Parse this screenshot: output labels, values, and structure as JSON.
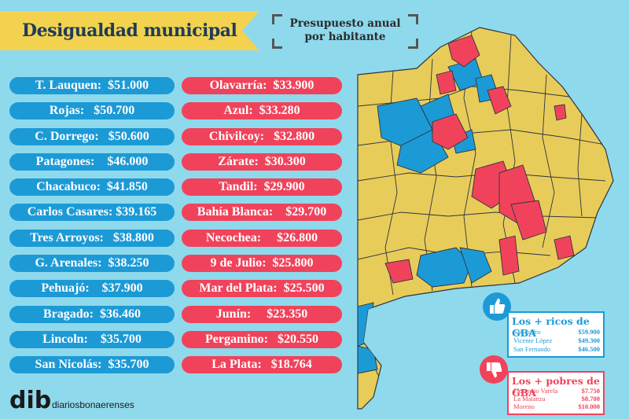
{
  "title": "Desigualdad municipal",
  "subtitle_line1": "Presupuesto anual",
  "subtitle_line2": "por habitante",
  "left_column": [
    "T. Lauquen:  $51.000",
    "Rojas:   $50.700",
    "C. Dorrego:   $50.600",
    "Patagones:    $46.000",
    "Chacabuco:  $41.850",
    "Carlos Casares: $39.165",
    "Tres Arroyos:   $38.800",
    "G. Arenales:  $38.250",
    "Pehuajó:    $37.900",
    "Bragado:  $36.460",
    "Lincoln:    $35.700",
    "San Nicolás:  $35.700"
  ],
  "right_column": [
    "Olavarría:  $33.900",
    "Azul:  $33.280",
    "Chivilcoy:   $32.800",
    "Zárate:  $30.300",
    "Tandil:  $29.900",
    "Bahía Blanca:    $29.700",
    "Necochea:     $26.800",
    "9 de Julio:  $25.800",
    "Mar del Plata:  $25.500",
    "Junín:     $23.350",
    "Pergamino:   $20.550",
    "La Plata:   $18.764"
  ],
  "rich_box": {
    "title": "Los + ricos de GBA",
    "rows": [
      {
        "name": "San Isidro",
        "value": "$59.900"
      },
      {
        "name": "Vicente López",
        "value": "$49.300"
      },
      {
        "name": "San Fernando",
        "value": "$46.500"
      }
    ]
  },
  "poor_box": {
    "title": "Los + pobres de GBA",
    "rows": [
      {
        "name": "Florencio Varela",
        "value": "$7.750"
      },
      {
        "name": "La Matanza",
        "value": "$8.700"
      },
      {
        "name": "Moreno",
        "value": "$10.000"
      }
    ]
  },
  "logo_mark": "dib",
  "logo_text": "diariosbonaerenses",
  "colors": {
    "background": "#8fd9ec",
    "rich": "#1c9ad6",
    "poor": "#f0435b",
    "neutral": "#e8cc5a",
    "banner": "#f2d24f"
  },
  "icons": [
    "thumbs-up-icon",
    "thumbs-down-icon"
  ]
}
